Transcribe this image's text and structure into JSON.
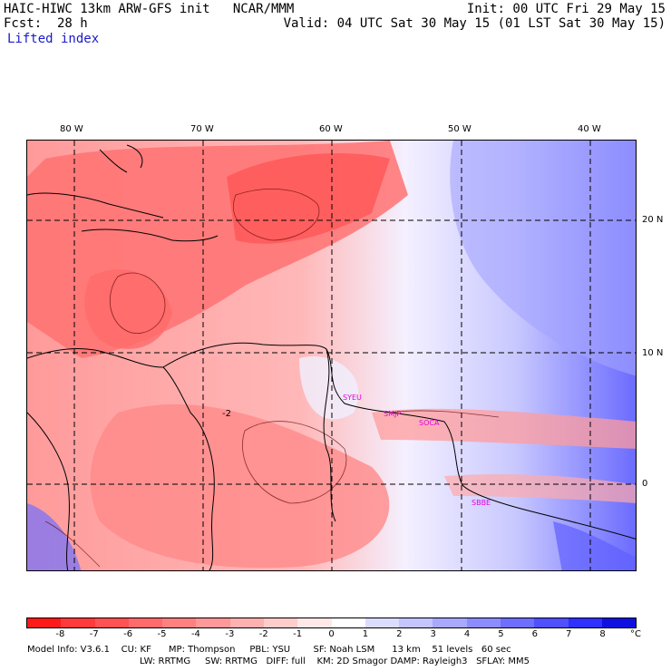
{
  "header": {
    "model_title": "HAIC-HIWC 13km ARW-GFS init   NCAR/MMM",
    "forecast": "Fcst:  28 h",
    "init": "Init: 00 UTC Fri 29 May 15",
    "valid": "Valid: 04 UTC Sat 30 May 15 (01 LST Sat 30 May 15)",
    "field": "Lifted index"
  },
  "map": {
    "lon_labels": [
      "80 W",
      "70 W",
      "60 W",
      "50 W",
      "40 W"
    ],
    "lat_labels": [
      "20 N",
      "10 N",
      "0"
    ],
    "contour_label": "-2",
    "stations": [
      "SYEU",
      "SMJP",
      "SOCA",
      "SBBE"
    ]
  },
  "colorbar": {
    "labels": [
      "-8",
      "-7",
      "-6",
      "-5",
      "-4",
      "-3",
      "-2",
      "-1",
      "0",
      "1",
      "2",
      "3",
      "4",
      "5",
      "6",
      "7",
      "8"
    ],
    "unit": "°C",
    "colors": [
      "#ff1a1a",
      "#ff3a3a",
      "#ff5252",
      "#ff6a6a",
      "#ff8080",
      "#ff9898",
      "#ffb0b0",
      "#ffcccc",
      "#ffe8e8",
      "#ffffff",
      "#dcdcff",
      "#c4c4ff",
      "#a8a8ff",
      "#8c8cff",
      "#6e6eff",
      "#5050ff",
      "#3030ff",
      "#1010e0"
    ]
  },
  "model_info": {
    "line1": "Model Info: V3.6.1    CU: KF      MP: Thompson     PBL: YSU        SF: Noah LSM      13 km    51 levels   60 sec",
    "line2": "LW: RRTMG     SW: RRTMG   DIFF: full    KM: 2D Smagor DAMP: Rayleigh3   SFLAY: MM5"
  }
}
